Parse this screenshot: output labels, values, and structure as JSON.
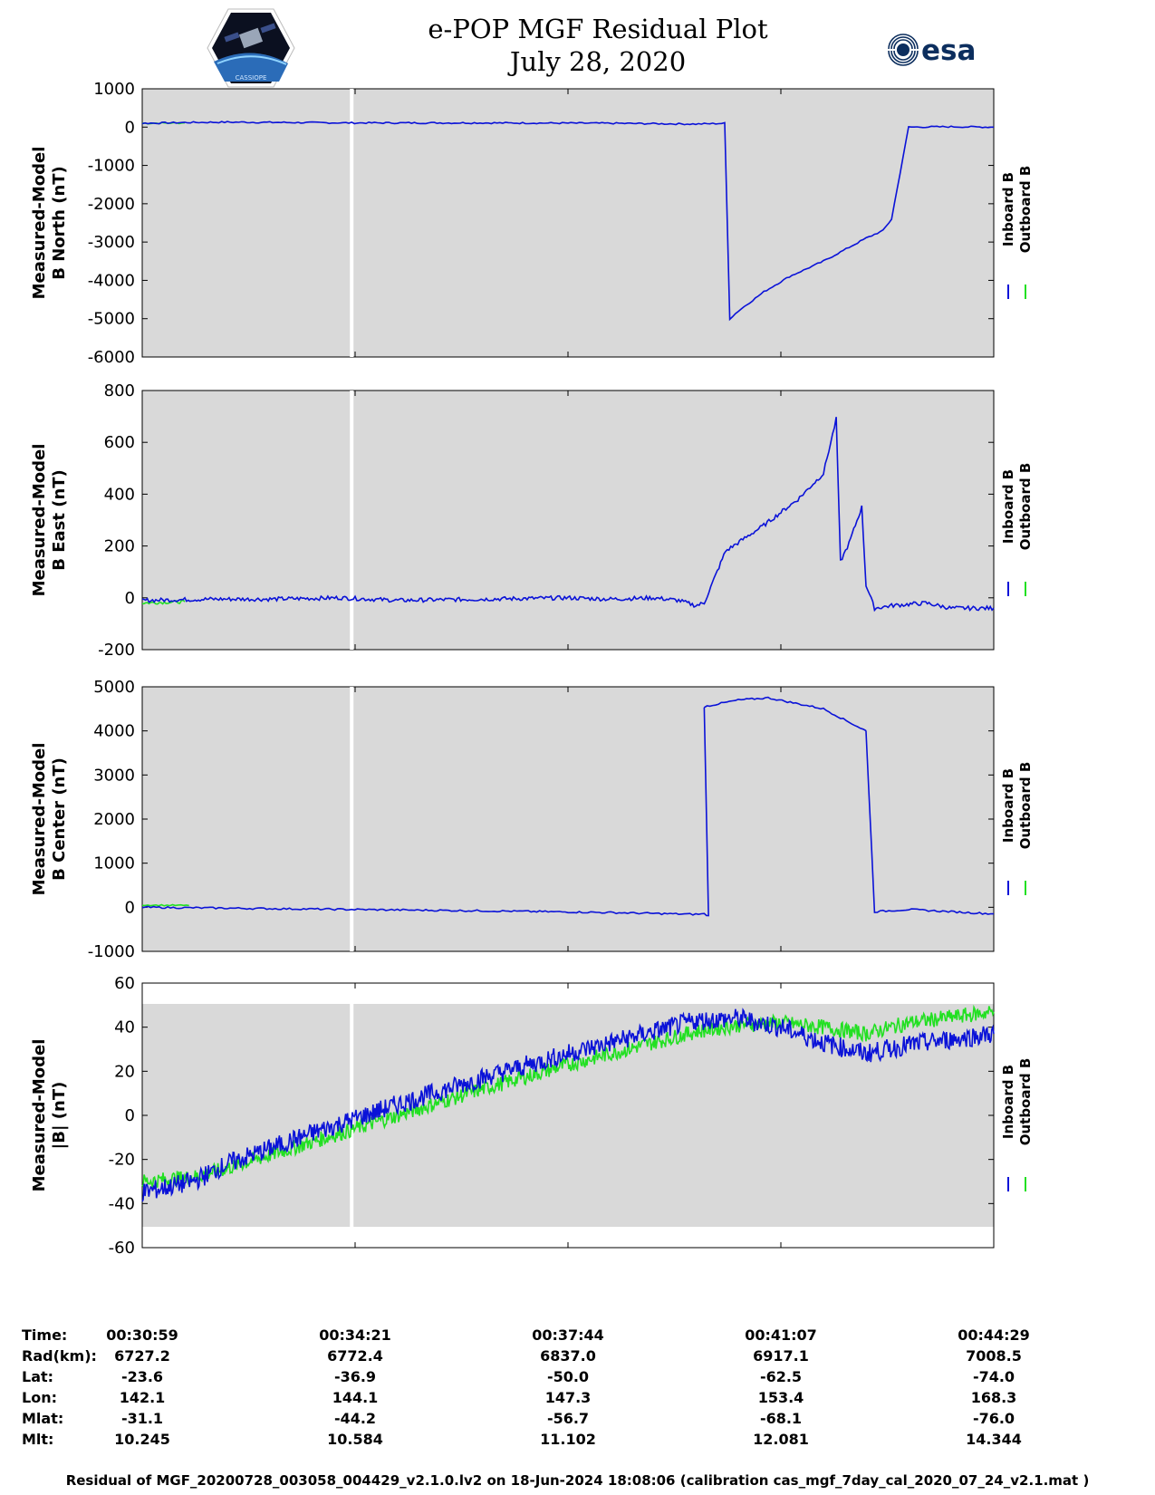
{
  "title_line1": "e-POP MGF Residual Plot",
  "title_line2": "July 28, 2020",
  "logos": {
    "left": "cassiope-mission-logo",
    "right": "esa-logo",
    "esa_text": "esa",
    "cassiope_text": "CASSIOPE"
  },
  "colors": {
    "inboard": "#0a12d8",
    "outboard": "#22e022",
    "plot_bg": "#d9d9d9",
    "data_gap": "#ffffff"
  },
  "legend": {
    "inboard": "Inboard B",
    "outboard": "Outboard B"
  },
  "time_ticks": [
    "00:30:59",
    "00:34:21",
    "00:37:44",
    "00:41:07",
    "00:44:29"
  ],
  "info_table": {
    "rows": [
      {
        "label": "Time:",
        "values": [
          "00:30:59",
          "00:34:21",
          "00:37:44",
          "00:41:07",
          "00:44:29"
        ]
      },
      {
        "label": "Rad(km):",
        "values": [
          "6727.2",
          "6772.4",
          "6837.0",
          "6917.1",
          "7008.5"
        ]
      },
      {
        "label": "Lat:",
        "values": [
          "-23.6",
          "-36.9",
          "-50.0",
          "-62.5",
          "-74.0"
        ]
      },
      {
        "label": "Lon:",
        "values": [
          "142.1",
          "144.1",
          "147.3",
          "153.4",
          "168.3"
        ]
      },
      {
        "label": "Mlat:",
        "values": [
          "-31.1",
          "-44.2",
          "-56.7",
          "-68.1",
          "-76.0"
        ]
      },
      {
        "label": "Mlt:",
        "values": [
          "10.245",
          "10.584",
          "11.102",
          "12.081",
          "14.344"
        ]
      }
    ]
  },
  "footer": "Residual of MGF_20200728_003058_004429_v2.1.0.lv2 on 18-Jun-2024 18:08:06 (calibration cas_mgf_7day_cal_2020_07_24_v2.1.mat )",
  "chart_data": [
    {
      "type": "line",
      "panel": "north",
      "ylabel": [
        "Measured-Model",
        "B North (nT)"
      ],
      "ylim": [
        -6000,
        1000
      ],
      "yticks": [
        1000,
        0,
        -1000,
        -2000,
        -3000,
        -4000,
        -5000,
        -6000
      ],
      "x_unit": "fraction of time span",
      "data_gap_x": 0.246,
      "series": [
        {
          "name": "Inboard B",
          "x": [
            0,
            0.05,
            0.1,
            0.246,
            0.4,
            0.55,
            0.65,
            0.67,
            0.684,
            0.69,
            0.7,
            0.73,
            0.76,
            0.8,
            0.85,
            0.87,
            0.88,
            0.9,
            0.95,
            1.0
          ],
          "y": [
            100,
            120,
            130,
            110,
            110,
            100,
            80,
            90,
            100,
            -5000,
            -4800,
            -4300,
            -3900,
            -3500,
            -2900,
            -2700,
            -2400,
            0,
            10,
            0
          ]
        },
        {
          "name": "Outboard B",
          "x": [
            0,
            0.05
          ],
          "y": [
            100,
            110
          ]
        }
      ]
    },
    {
      "type": "line",
      "panel": "east",
      "ylabel": [
        "Measured-Model",
        "B East (nT)"
      ],
      "ylim": [
        -200,
        800
      ],
      "yticks": [
        800,
        600,
        400,
        200,
        0,
        -200
      ],
      "x_unit": "fraction of time span",
      "data_gap_x": 0.246,
      "series": [
        {
          "name": "Inboard B",
          "x": [
            0,
            0.08,
            0.15,
            0.234,
            0.3,
            0.4,
            0.5,
            0.55,
            0.6,
            0.63,
            0.65,
            0.66,
            0.685,
            0.73,
            0.77,
            0.8,
            0.815,
            0.82,
            0.83,
            0.845,
            0.85,
            0.86,
            0.88,
            0.92,
            0.95,
            1.0
          ],
          "y": [
            -10,
            -5,
            -5,
            0,
            -10,
            -5,
            0,
            -5,
            0,
            -10,
            -30,
            -20,
            180,
            280,
            380,
            480,
            690,
            140,
            210,
            350,
            50,
            -40,
            -30,
            -20,
            -40,
            -40
          ]
        },
        {
          "name": "Outboard B",
          "x": [
            0,
            0.05
          ],
          "y": [
            -20,
            -15
          ]
        }
      ]
    },
    {
      "type": "line",
      "panel": "center",
      "ylabel": [
        "Measured-Model",
        "B Center (nT)"
      ],
      "ylim": [
        -1000,
        5000
      ],
      "yticks": [
        5000,
        4000,
        3000,
        2000,
        1000,
        0,
        -1000
      ],
      "x_unit": "fraction of time span",
      "data_gap_x": 0.246,
      "series": [
        {
          "name": "Inboard B",
          "x": [
            0,
            0.246,
            0.4,
            0.55,
            0.65,
            0.66,
            0.665,
            0.66,
            0.66,
            0.7,
            0.735,
            0.8,
            0.85,
            0.85,
            0.86,
            0.9,
            0.95,
            1.0
          ],
          "y": [
            0,
            -50,
            -80,
            -120,
            -160,
            -150,
            -200,
            4500,
            4550,
            4700,
            4750,
            4500,
            4000,
            4000,
            -100,
            -50,
            -100,
            -150
          ]
        },
        {
          "name": "Outboard B",
          "x": [
            0,
            0.055
          ],
          "y": [
            50,
            40
          ]
        }
      ]
    },
    {
      "type": "line",
      "panel": "magnitude",
      "ylabel": [
        "Measured-Model",
        "|B| (nT)"
      ],
      "ylim": [
        -60,
        60
      ],
      "yticks": [
        60,
        40,
        20,
        0,
        -20,
        -40,
        -60
      ],
      "x_unit": "fraction of time span",
      "data_gap_x": 0.246,
      "series": [
        {
          "name": "Inboard B",
          "x": [
            0,
            0.06,
            0.1,
            0.2,
            0.3,
            0.4,
            0.5,
            0.6,
            0.65,
            0.7,
            0.75,
            0.8,
            0.85,
            0.9,
            1.0
          ],
          "y": [
            -35,
            -30,
            -22,
            -8,
            5,
            17,
            28,
            38,
            43,
            44,
            40,
            33,
            28,
            32,
            37
          ]
        },
        {
          "name": "Outboard B",
          "x": [
            0,
            0.06,
            0.1,
            0.2,
            0.3,
            0.4,
            0.5,
            0.6,
            0.65,
            0.7,
            0.75,
            0.8,
            0.85,
            0.9,
            1.0
          ],
          "y": [
            -30,
            -28,
            -24,
            -12,
            0,
            12,
            23,
            33,
            38,
            41,
            42,
            40,
            37,
            42,
            47
          ]
        }
      ]
    }
  ]
}
